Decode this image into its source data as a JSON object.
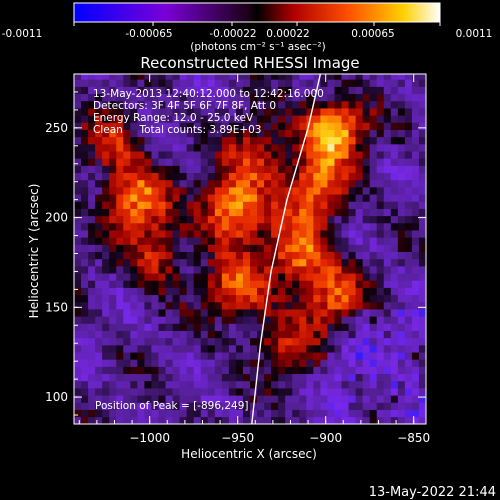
{
  "colorbar": {
    "ticks": [
      "-0.0011",
      "-0.00065",
      "-0.00022",
      "0.00022",
      "0.00065",
      "0.0011"
    ],
    "unit_label": "(photons cm⁻² s⁻¹ asec⁻²)"
  },
  "chart_data": {
    "type": "heatmap",
    "title": "Reconstructed RHESSI Image",
    "xlabel": "Heliocentric X (arcsec)",
    "ylabel": "Heliocentric Y (arcsec)",
    "xlim": [
      -1043,
      -843
    ],
    "ylim": [
      85,
      280
    ],
    "x_ticks": [
      -1000,
      -950,
      -900,
      -850
    ],
    "y_ticks": [
      100,
      150,
      200,
      250
    ],
    "x_tick_labels": [
      "−1000",
      "−950",
      "−900",
      "−850"
    ],
    "y_tick_labels": [
      "100",
      "150",
      "200",
      "250"
    ],
    "colormap": "blue-purple-black-red-orange-yellow-white",
    "color_range": [
      -0.0011,
      0.0011
    ],
    "annotations": [
      "13-May-2013 12:40:12.000 to 12:42:16.000",
      "Detectors: 3F 4F 5F 6F 7F 8F, Att 0",
      "Energy Range: 12.0 - 25.0 keV",
      "Clean     Total counts: 3.89E+03"
    ],
    "peak_label": "Position of Peak = [-896,249]",
    "peak": [
      -896,
      249
    ],
    "limb_curve": [
      [
        -942,
        85
      ],
      [
        -937,
        130
      ],
      [
        -931,
        170
      ],
      [
        -922,
        210
      ],
      [
        -910,
        250
      ],
      [
        -903,
        280
      ]
    ],
    "bright_regions": [
      {
        "x": -1008,
        "y": 210,
        "level": 0.8
      },
      {
        "x": -995,
        "y": 178,
        "level": 0.55
      },
      {
        "x": -1020,
        "y": 240,
        "level": 0.5
      },
      {
        "x": -953,
        "y": 205,
        "level": 1.0
      },
      {
        "x": -950,
        "y": 160,
        "level": 0.7
      },
      {
        "x": -938,
        "y": 235,
        "level": 0.6
      },
      {
        "x": -915,
        "y": 180,
        "level": 0.8
      },
      {
        "x": -905,
        "y": 215,
        "level": 0.75
      },
      {
        "x": -896,
        "y": 249,
        "level": 1.0
      },
      {
        "x": -896,
        "y": 155,
        "level": 0.65
      },
      {
        "x": -925,
        "y": 130,
        "level": 0.45
      }
    ]
  },
  "footer": {
    "timestamp": "13-May-2022 21:44"
  }
}
